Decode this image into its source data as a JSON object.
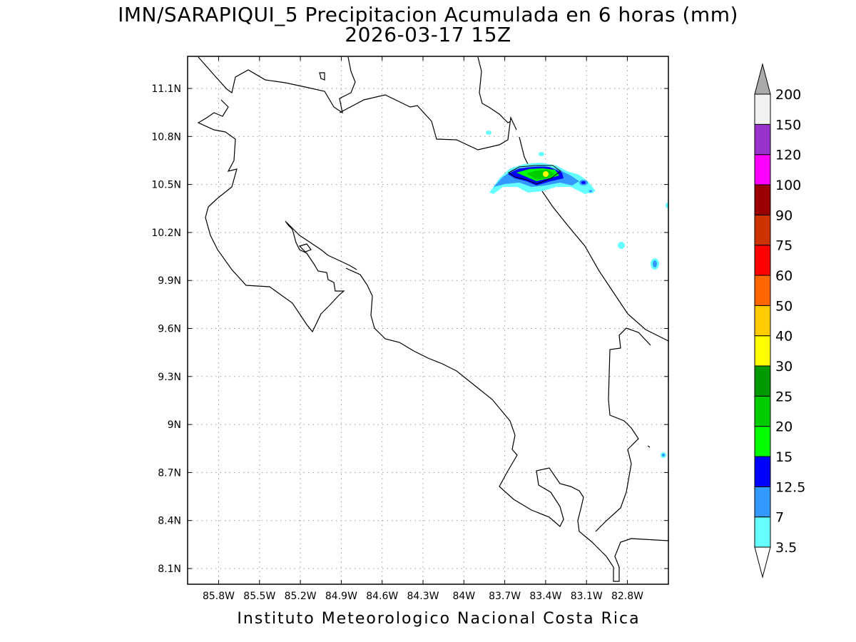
{
  "title": {
    "line1": "IMN/SARAPIQUI_5 Precipitacion Acumulada en 6 horas (mm)",
    "line2": "2026-03-17 15Z"
  },
  "footer": "Instituto Meteorologico Nacional Costa Rica",
  "axes": {
    "x_ticks": [
      "85.8W",
      "85.5W",
      "85.2W",
      "84.9W",
      "84.6W",
      "84.3W",
      "84W",
      "83.7W",
      "83.4W",
      "83.1W",
      "82.8W"
    ],
    "y_ticks": [
      "11.1N",
      "10.8N",
      "10.5N",
      "10.2N",
      "9.9N",
      "9.6N",
      "9.3N",
      "9N",
      "8.7N",
      "8.4N",
      "8.1N"
    ]
  },
  "colorbar": {
    "labels": [
      "3.5",
      "7",
      "12.5",
      "15",
      "20",
      "25",
      "30",
      "40",
      "50",
      "60",
      "75",
      "90",
      "100",
      "120",
      "150",
      "200"
    ],
    "colors": [
      "#66ffff",
      "#3399ff",
      "#0000ff",
      "#00ff00",
      "#00cc00",
      "#009900",
      "#ffff00",
      "#ffcc00",
      "#ff6600",
      "#ff0000",
      "#cc3300",
      "#990000",
      "#ff00ff",
      "#9933cc",
      "#f2f2f2",
      "#aaaaaa"
    ]
  }
}
